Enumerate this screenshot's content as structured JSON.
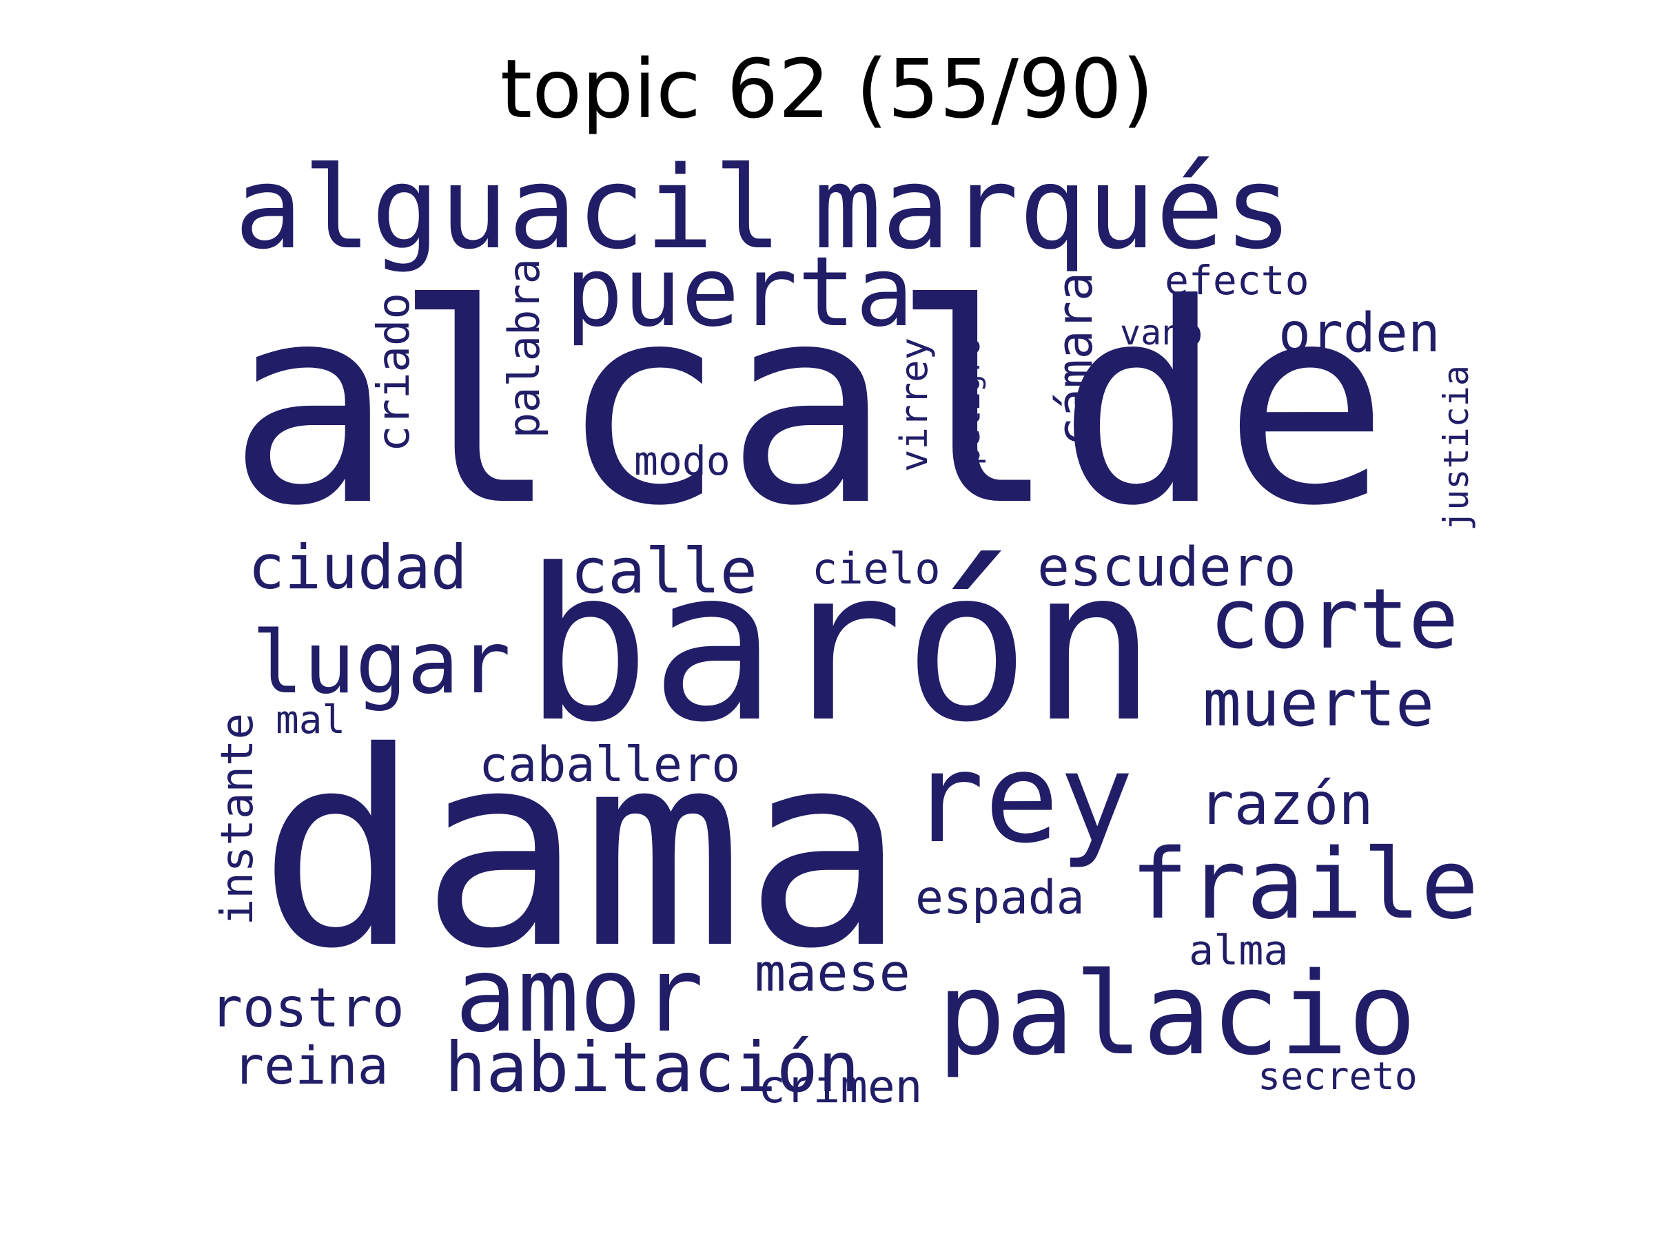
{
  "title": "topic 62 (55/90)",
  "word_color": "#211d67",
  "words": {
    "alcalde": "alcalde",
    "dama": "dama",
    "baron": "barón",
    "alguacil": "alguacil",
    "marques": "marqués",
    "puerta": "puerta",
    "rey": "rey",
    "palacio": "palacio",
    "fraile": "fraile",
    "amor": "amor",
    "corte": "corte",
    "lugar": "lugar",
    "habitacion": "habitación",
    "muerte": "muerte",
    "calle": "calle",
    "ciudad": "ciudad",
    "escudero": "escudero",
    "orden": "orden",
    "razon": "razón",
    "caballero": "caballero",
    "maese": "maese",
    "rostro": "rostro",
    "reina": "reina",
    "espada": "espada",
    "camara": "cámara",
    "palabra": "palabra",
    "criado": "criado",
    "virrey": "virrey",
    "instante": "instante",
    "justicia": "justicia",
    "efecto": "efecto",
    "modo": "modo",
    "cielo": "cielo",
    "crimen": "crimen",
    "alma": "alma",
    "secreto": "secreto",
    "peligro": "peligro",
    "vano": "vano",
    "mal": "mal"
  }
}
